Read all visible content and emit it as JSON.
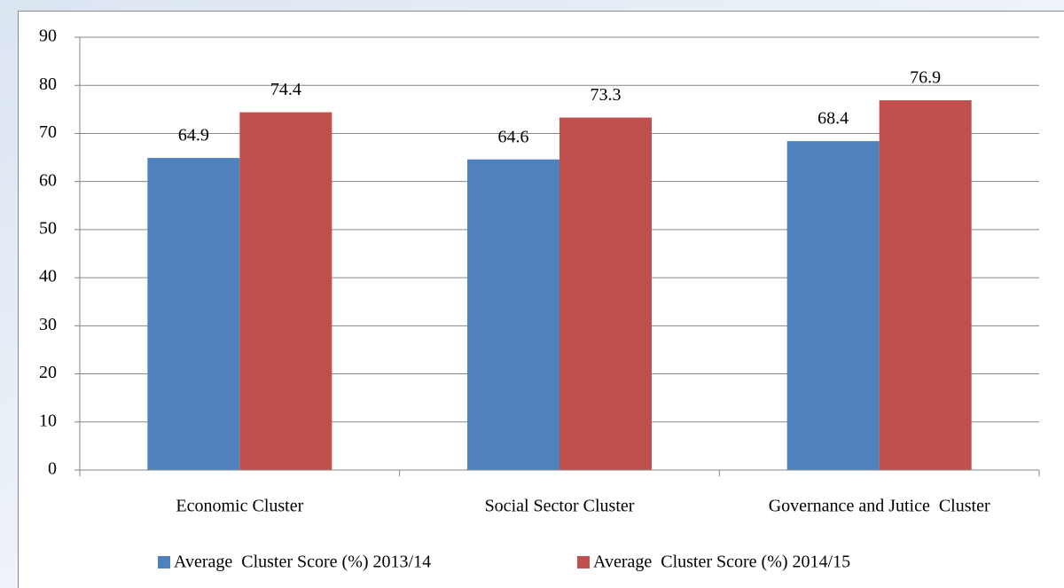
{
  "chart_data": {
    "type": "bar",
    "categories": [
      "Economic Cluster",
      "Social Sector Cluster",
      "Governance and Jutice  Cluster"
    ],
    "series": [
      {
        "name": "Average  Cluster Score (%) 2013/14",
        "color": "#4f81bd",
        "values": [
          64.9,
          64.6,
          68.4
        ]
      },
      {
        "name": "Average  Cluster Score (%) 2014/15",
        "color": "#c0504d",
        "values": [
          74.4,
          73.3,
          76.9
        ]
      }
    ],
    "ylim": [
      0,
      90
    ],
    "yticks": [
      0,
      10,
      20,
      30,
      40,
      50,
      60,
      70,
      80,
      90
    ],
    "grid": true,
    "legend": "bottom"
  }
}
